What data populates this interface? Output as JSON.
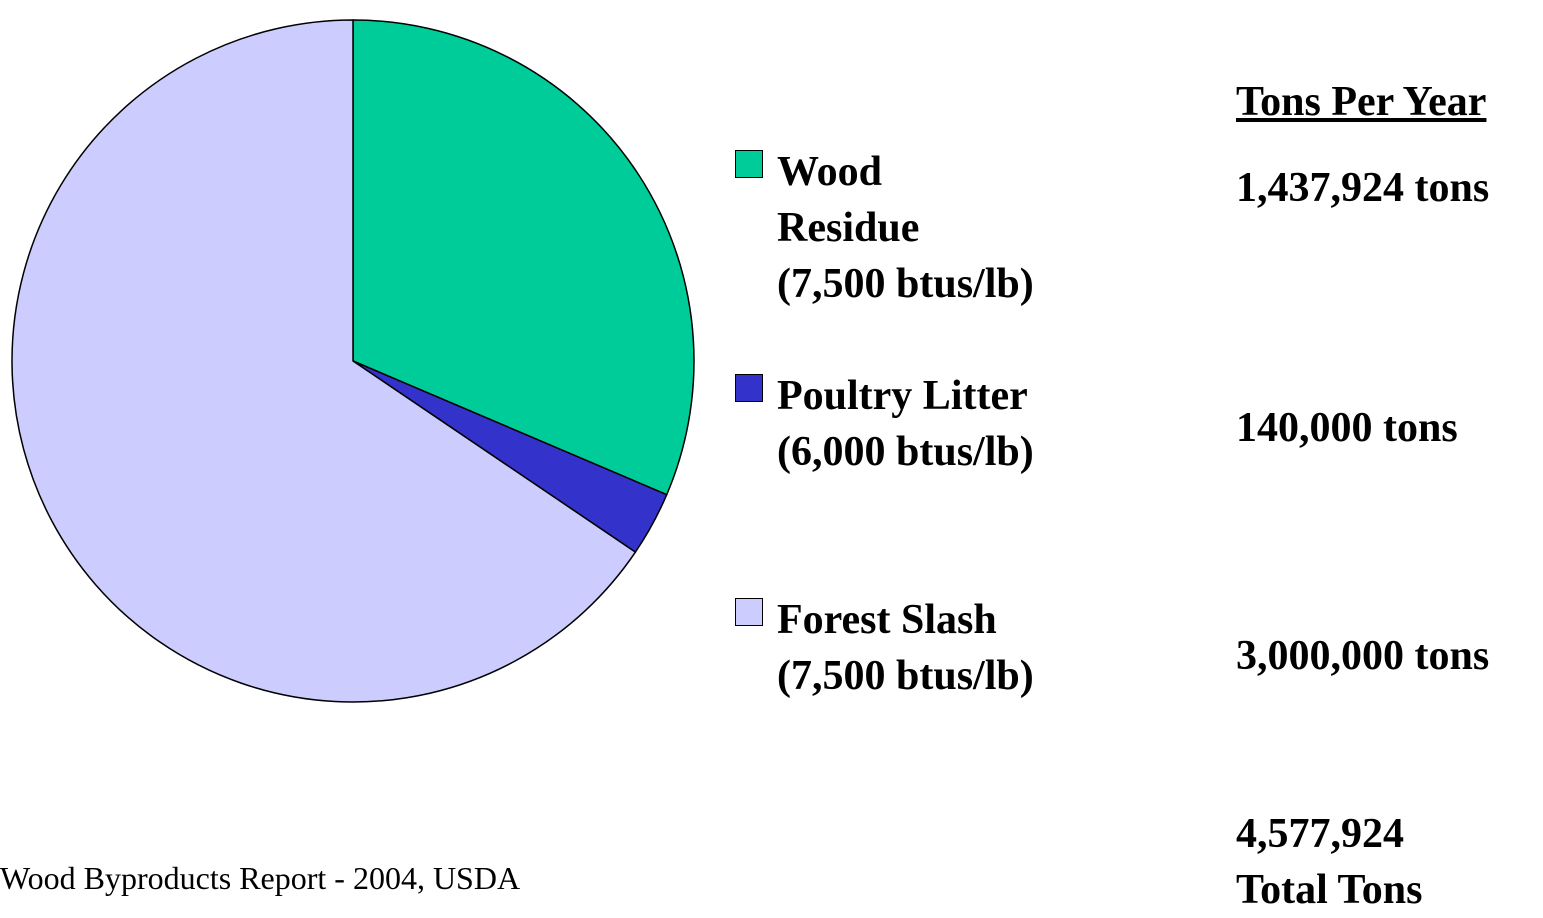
{
  "chart_data": {
    "type": "pie",
    "slices": [
      {
        "label": "Wood Residue (7,500 btus/lb)",
        "value": 1437924,
        "color": "#00cc99"
      },
      {
        "label": "Poultry Litter (6,000 btus/lb)",
        "value": 140000,
        "color": "#3333cc"
      },
      {
        "label": "Forest Slash (7,500 btus/lb)",
        "value": 3000000,
        "color": "#ccccff"
      }
    ]
  },
  "legend": [
    {
      "lines": [
        "Wood",
        "Residue",
        "(7,500 btus/lb)"
      ],
      "color": "#00cc99"
    },
    {
      "lines": [
        "Poultry Litter",
        "(6,000 btus/lb)"
      ],
      "color": "#3333cc"
    },
    {
      "lines": [
        "Forest Slash",
        "(7,500 btus/lb)"
      ],
      "color": "#ccccff"
    }
  ],
  "tons_header": "Tons Per Year",
  "tons": [
    "1,437,924 tons",
    "140,000 tons",
    "3,000,000 tons"
  ],
  "total": {
    "line1": "4,577,924",
    "line2": "Total Tons"
  },
  "source": "Wood Byproducts Report - 2004, USDA"
}
